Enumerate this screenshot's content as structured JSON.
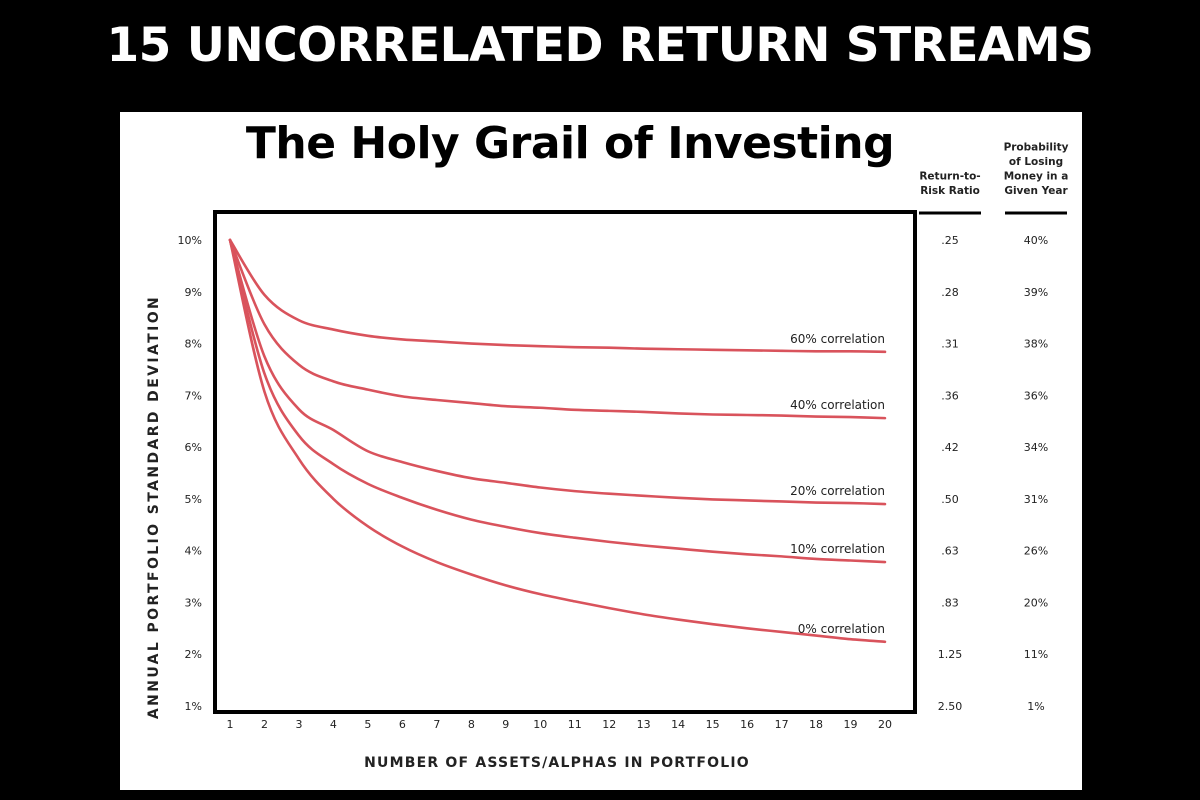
{
  "headline": "15 UNCORRELATED RETURN STREAMS",
  "chart_data": {
    "type": "line",
    "title": "The Holy Grail of Investing",
    "xlabel": "NUMBER OF ASSETS/ALPHAS IN PORTFOLIO",
    "ylabel": "ANNUAL PORTFOLIO STANDARD DEVIATION",
    "x": [
      1,
      2,
      3,
      4,
      5,
      6,
      7,
      8,
      9,
      10,
      11,
      12,
      13,
      14,
      15,
      16,
      17,
      18,
      19,
      20
    ],
    "xlim": [
      1,
      20
    ],
    "ylim": [
      1,
      10
    ],
    "y_tick_labels": [
      "10%",
      "9%",
      "8%",
      "7%",
      "6%",
      "5%",
      "4%",
      "3%",
      "2%",
      "1%"
    ],
    "y_tick_values": [
      10,
      9,
      8,
      7,
      6,
      5,
      4,
      3,
      2,
      1
    ],
    "grid": false,
    "series": [
      {
        "name": "60% correlation",
        "values": [
          10,
          8.94,
          8.45,
          8.27,
          8.15,
          8.08,
          8.04,
          8.0,
          7.97,
          7.95,
          7.93,
          7.92,
          7.9,
          7.89,
          7.88,
          7.87,
          7.86,
          7.85,
          7.85,
          7.84
        ]
      },
      {
        "name": "40% correlation",
        "values": [
          10,
          8.37,
          7.59,
          7.27,
          7.11,
          6.98,
          6.91,
          6.85,
          6.79,
          6.76,
          6.72,
          6.7,
          6.68,
          6.65,
          6.63,
          6.62,
          6.61,
          6.59,
          6.58,
          6.56
        ]
      },
      {
        "name": "20% correlation",
        "values": [
          10,
          7.75,
          6.73,
          6.33,
          5.92,
          5.71,
          5.54,
          5.4,
          5.31,
          5.22,
          5.15,
          5.1,
          5.06,
          5.02,
          4.99,
          4.97,
          4.95,
          4.93,
          4.92,
          4.9
        ]
      },
      {
        "name": "10% correlation",
        "values": [
          10,
          7.42,
          6.22,
          5.67,
          5.29,
          5.02,
          4.79,
          4.6,
          4.46,
          4.34,
          4.25,
          4.17,
          4.1,
          4.04,
          3.98,
          3.93,
          3.89,
          3.84,
          3.81,
          3.78
        ]
      },
      {
        "name": "0% correlation",
        "values": [
          10,
          7.07,
          5.77,
          5.0,
          4.47,
          4.08,
          3.78,
          3.54,
          3.33,
          3.16,
          3.02,
          2.89,
          2.77,
          2.67,
          2.58,
          2.5,
          2.43,
          2.36,
          2.29,
          2.24
        ]
      }
    ],
    "series_color": "#d9535c",
    "table": {
      "headers": [
        "Return-to-\nRisk Ratio",
        "Probability\nof Losing\nMoney in a\nGiven Year"
      ],
      "rows": [
        [
          ".25",
          "40%"
        ],
        [
          ".28",
          "39%"
        ],
        [
          ".31",
          "38%"
        ],
        [
          ".36",
          "36%"
        ],
        [
          ".42",
          "34%"
        ],
        [
          ".50",
          "31%"
        ],
        [
          ".63",
          "26%"
        ],
        [
          ".83",
          "20%"
        ],
        [
          "1.25",
          "11%"
        ],
        [
          "2.50",
          "1%"
        ]
      ]
    }
  }
}
